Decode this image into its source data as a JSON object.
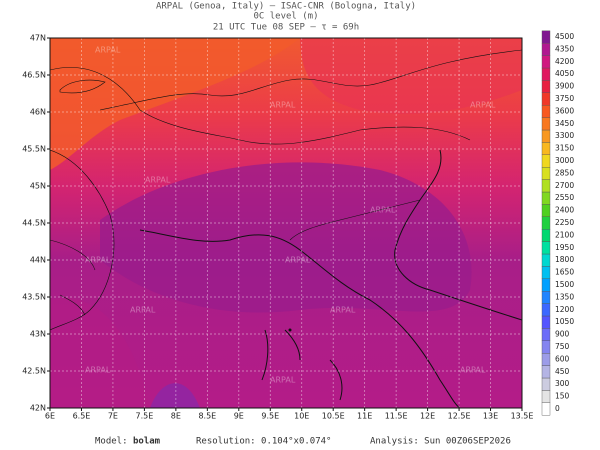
{
  "header": {
    "line1": "ARPAL (Genoa, Italy)  –  ISAC-CNR (Bologna, Italy)",
    "line2": "0C level (m)",
    "line3": "21 UTC Tue 08 SEP  –  τ = 69h"
  },
  "map": {
    "lon_labels": [
      "6E",
      "6.5E",
      "7E",
      "7.5E",
      "8E",
      "8.5E",
      "9E",
      "9.5E",
      "10E",
      "10.5E",
      "11E",
      "11.5E",
      "12E",
      "12.5E",
      "13E",
      "13.5E"
    ],
    "lat_labels": [
      "42N",
      "42.5N",
      "43N",
      "43.5N",
      "44N",
      "44.5N",
      "45N",
      "45.5N",
      "46N",
      "46.5N",
      "47N"
    ],
    "watermark": "ARPAL"
  },
  "colorbar": {
    "labels": [
      "0",
      "150",
      "300",
      "450",
      "600",
      "750",
      "900",
      "1050",
      "1200",
      "1350",
      "1500",
      "1650",
      "1800",
      "1950",
      "2100",
      "2250",
      "2400",
      "2550",
      "2700",
      "2850",
      "3000",
      "3150",
      "3300",
      "3450",
      "3600",
      "3750",
      "3900",
      "4050",
      "4200",
      "4350",
      "4500"
    ],
    "colors": [
      "#ffffff",
      "#e4e4e4",
      "#cccce0",
      "#b4b4e4",
      "#9c9ce8",
      "#8484f0",
      "#6c6cf8",
      "#5454ff",
      "#3c68ff",
      "#2084ff",
      "#00a0ff",
      "#00c0f0",
      "#00d8d0",
      "#00e0a0",
      "#00d870",
      "#20d040",
      "#50d020",
      "#80d820",
      "#b0e020",
      "#d8e020",
      "#f0d820",
      "#f8b820",
      "#f89820",
      "#f87820",
      "#f85820",
      "#f03828",
      "#e82040",
      "#e01860",
      "#d01880",
      "#b01890",
      "#801890"
    ]
  },
  "footer": {
    "model_label": "Model:",
    "model": "bolam",
    "resolution": "Resolution: 0.104°x0.074°",
    "analysis": "Analysis: Sun 00Z06SEP2026"
  }
}
